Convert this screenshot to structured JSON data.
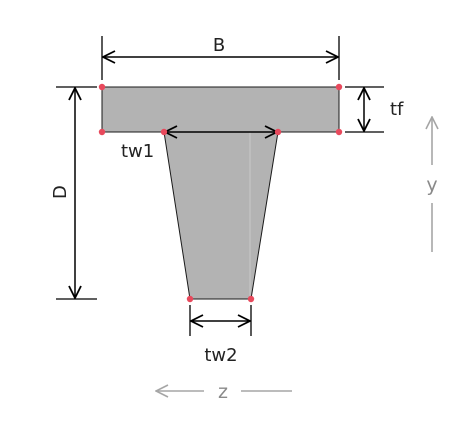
{
  "labels": {
    "B": "B",
    "tf": "tf",
    "D": "D",
    "tw1": "tw1",
    "tw2": "tw2",
    "y": "y",
    "z": "z"
  },
  "colors": {
    "section_fill": "#b3b3b3",
    "outline": "#1a1a1a",
    "vertex_points": "#e8495c",
    "dimension_lines": "#000000",
    "axis_arrows": "#a6a6a6"
  }
}
